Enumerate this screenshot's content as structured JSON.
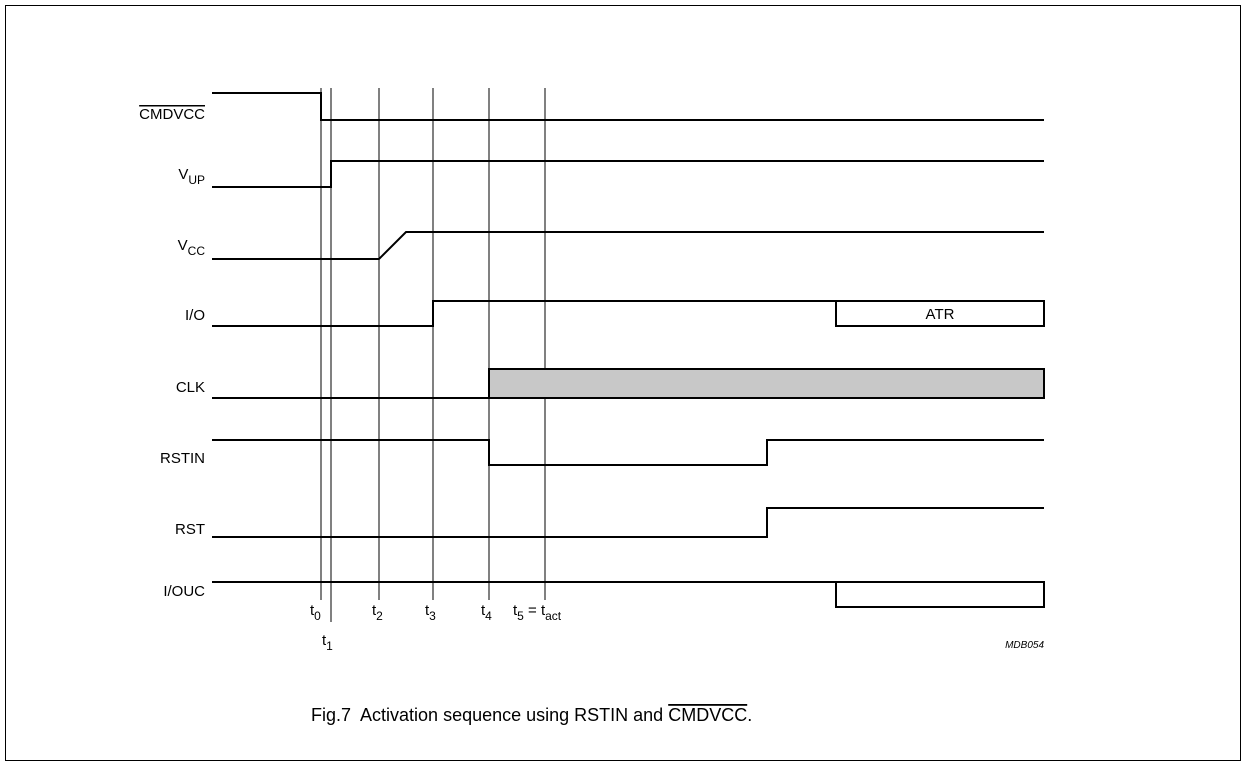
{
  "signals": {
    "cmdvcc": "CMDVCC",
    "vup_main": "V",
    "vup_sub": "UP",
    "vcc_main": "V",
    "vcc_sub": "CC",
    "io": "I/O",
    "clk": "CLK",
    "rstin": "RSTIN",
    "rst": "RST",
    "iouc": "I/OUC"
  },
  "io_burst_label": "ATR",
  "times": {
    "t0": {
      "main": "t",
      "sub": "0"
    },
    "t1": {
      "main": "t",
      "sub": "1"
    },
    "t2": {
      "main": "t",
      "sub": "2"
    },
    "t3": {
      "main": "t",
      "sub": "3"
    },
    "t4": {
      "main": "t",
      "sub": "4"
    },
    "t5": {
      "main": "t",
      "sub": "5",
      "eq": " = t",
      "eq_sub": "act"
    }
  },
  "figure_code": "MDB054",
  "caption": {
    "prefix": "Fig.7  Activation sequence using RSTIN and ",
    "overlined": "CMDVCC",
    "suffix": "."
  },
  "colors": {
    "line": "#000000",
    "clock_fill": "#c8c8c8",
    "background": "#ffffff"
  }
}
